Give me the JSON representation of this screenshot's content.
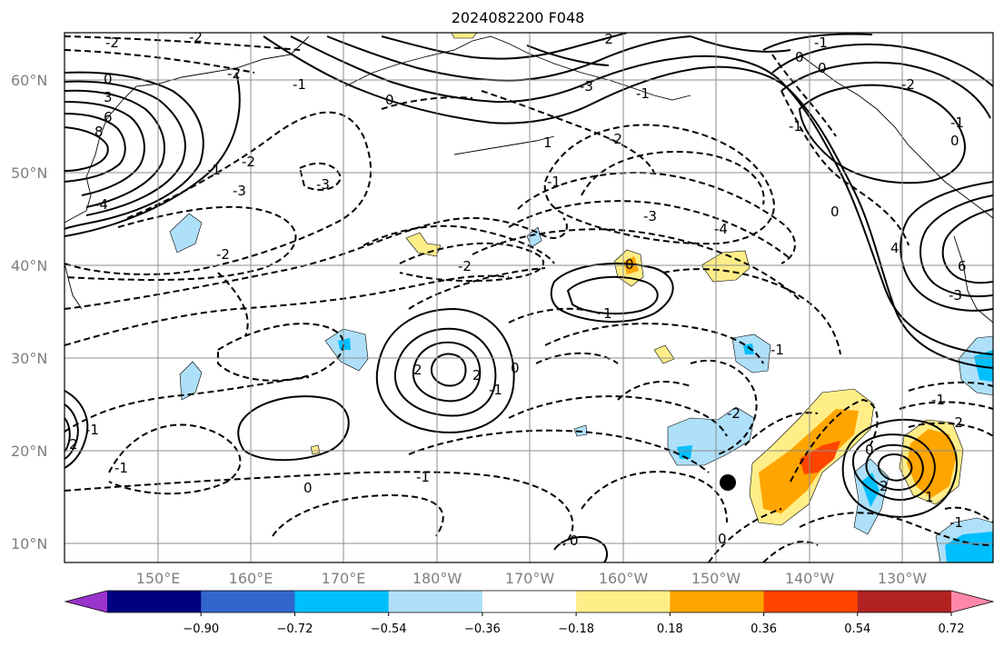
{
  "title": "2024082200 F048",
  "lat_labels": [
    "60°N",
    "50°N",
    "40°N",
    "30°N",
    "20°N",
    "10°N"
  ],
  "lon_labels": [
    "150°E",
    "160°E",
    "170°E",
    "180°W",
    "170°W",
    "160°W",
    "150°W",
    "140°W",
    "130°W"
  ],
  "colorbar": {
    "colors": [
      "#9933cc",
      "#000080",
      "#3366cc",
      "#00bfff",
      "#aee0fa",
      "#ffffff",
      "#ffee88",
      "#ffa500",
      "#ff4500",
      "#b22222",
      "#ff88aa"
    ],
    "tick_labels": [
      "−0.90",
      "−0.72",
      "−0.54",
      "−0.36",
      "−0.18",
      "0.18",
      "0.36",
      "0.54",
      "0.72",
      "0.90"
    ]
  },
  "contour_labels": [
    {
      "text": "-2"
    },
    {
      "text": "-2"
    },
    {
      "text": "-2"
    },
    {
      "text": "-1"
    },
    {
      "text": "0"
    },
    {
      "text": "3"
    },
    {
      "text": "6"
    },
    {
      "text": "8"
    },
    {
      "text": "-3"
    },
    {
      "text": "-3"
    },
    {
      "text": "-4"
    },
    {
      "text": "-2"
    },
    {
      "text": "-2"
    },
    {
      "text": "-1"
    },
    {
      "text": "0"
    },
    {
      "text": "-2"
    },
    {
      "text": "-1"
    },
    {
      "text": "-2"
    },
    {
      "text": "-3"
    },
    {
      "text": "-4"
    },
    {
      "text": "0"
    },
    {
      "text": "1"
    },
    {
      "text": "2"
    },
    {
      "text": "2"
    },
    {
      "text": "0"
    },
    {
      "text": "-1"
    },
    {
      "text": "-2"
    },
    {
      "text": "0"
    },
    {
      "text": "-1"
    },
    {
      "text": "-1"
    },
    {
      "text": "0"
    },
    {
      "text": "-1"
    },
    {
      "text": "2"
    },
    {
      "text": "-1"
    },
    {
      "text": "-1"
    },
    {
      "text": "-2"
    },
    {
      "text": "0"
    },
    {
      "text": "-1"
    },
    {
      "text": "1"
    },
    {
      "text": "2"
    },
    {
      "text": "0"
    },
    {
      "text": "4"
    },
    {
      "text": "6"
    },
    {
      "text": "-3"
    },
    {
      "text": "0"
    },
    {
      "text": "-2"
    },
    {
      "text": "0"
    },
    {
      "text": "0"
    },
    {
      "text": "-1"
    },
    {
      "text": "-1"
    },
    {
      "text": "0"
    },
    {
      "text": "-1"
    },
    {
      "text": "1"
    },
    {
      "text": "-3"
    },
    {
      "text": "-2"
    },
    {
      "text": "-1"
    }
  ]
}
